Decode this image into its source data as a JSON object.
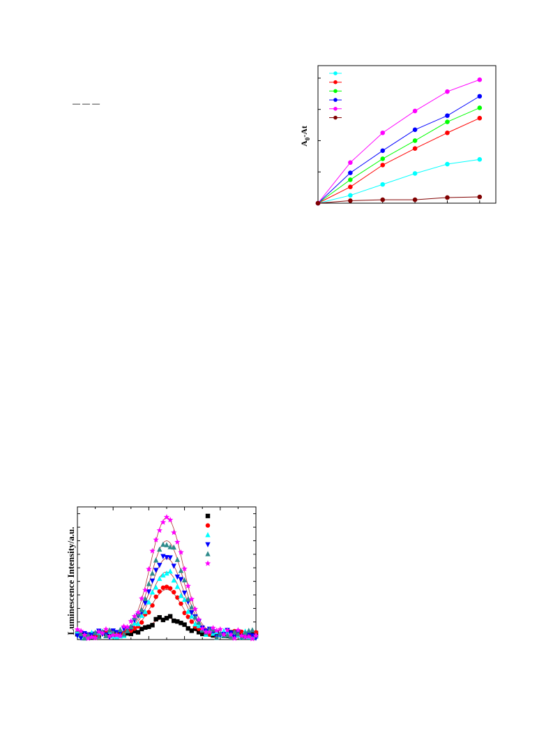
{
  "page": {
    "dash_marks": "— — —"
  },
  "chart_data": [
    {
      "type": "line",
      "title": "",
      "xlabel": "",
      "ylabel": "A0-At",
      "ylabel_main": "A",
      "ylabel_sub": "0",
      "ylabel_rest": "-At",
      "x": [
        0,
        1,
        2,
        3,
        4,
        5
      ],
      "xlim": [
        0,
        5.5
      ],
      "ylim": [
        0,
        4.4
      ],
      "legend_position": "top-left",
      "series": [
        {
          "color": "#00ffff",
          "values": [
            0,
            0.25,
            0.6,
            0.95,
            1.25,
            1.4
          ]
        },
        {
          "color": "#ff0000",
          "values": [
            0,
            0.52,
            1.22,
            1.75,
            2.25,
            2.72
          ]
        },
        {
          "color": "#00ff00",
          "values": [
            0,
            0.75,
            1.42,
            2.0,
            2.6,
            3.05
          ]
        },
        {
          "color": "#0000ff",
          "values": [
            0,
            0.97,
            1.68,
            2.35,
            2.8,
            3.42
          ]
        },
        {
          "color": "#ff00ff",
          "values": [
            0,
            1.3,
            2.25,
            2.95,
            3.57,
            3.95
          ]
        },
        {
          "color": "#800000",
          "values": [
            0,
            0.08,
            0.11,
            0.11,
            0.18,
            0.2
          ]
        }
      ]
    },
    {
      "type": "scatter",
      "title": "",
      "xlabel": "",
      "ylabel": "Luminescence Intensity/a.u.",
      "xlim": [
        0,
        100
      ],
      "ylim": [
        -0.3,
        9.5
      ],
      "legend_position": "top-right",
      "series": [
        {
          "marker": "square",
          "color": "#000000",
          "amplitude": 1.2
        },
        {
          "marker": "circle",
          "color": "#ff0000",
          "amplitude": 3.3
        },
        {
          "marker": "triangle-up",
          "color": "#00ffff",
          "amplitude": 4.6
        },
        {
          "marker": "triangle-down",
          "color": "#0000ff",
          "amplitude": 5.6
        },
        {
          "marker": "triangle-up",
          "color": "#2e8b8b",
          "amplitude": 6.9
        },
        {
          "marker": "star",
          "color": "#ff00ff",
          "amplitude": 8.6
        }
      ],
      "peak_center": 50,
      "peak_width": 9,
      "baseline": 0.1
    }
  ]
}
